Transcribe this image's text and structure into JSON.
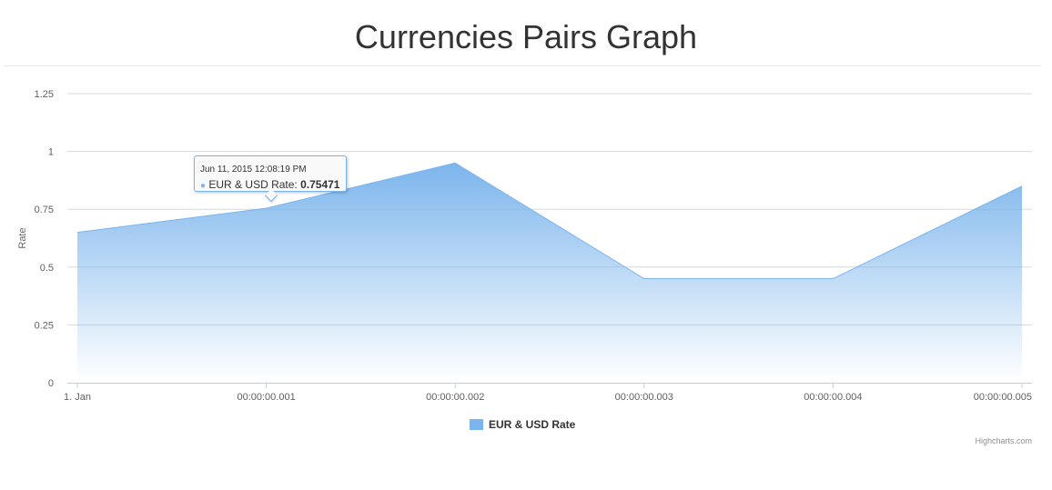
{
  "chart_data": {
    "type": "area",
    "title": "Currencies Pairs Graph",
    "ylabel": "Rate",
    "xlabel": "",
    "ylim": [
      0,
      1.25
    ],
    "y_ticks": [
      "0",
      "0.25",
      "0.5",
      "0.75",
      "1",
      "1.25"
    ],
    "y_tick_values": [
      0,
      0.25,
      0.5,
      0.75,
      1,
      1.25
    ],
    "x_ticks": [
      "1. Jan",
      "00:00:00.001",
      "00:00:00.002",
      "00:00:00.003",
      "00:00:00.004",
      "00:00:00.005"
    ],
    "grid": true,
    "legend": "bottom-center",
    "series": [
      {
        "name": "EUR & USD Rate",
        "x": [
          0,
          1,
          2,
          3,
          4,
          5
        ],
        "values": [
          0.65,
          0.75471,
          0.95,
          0.45,
          0.45,
          0.85
        ],
        "color": "#7cb5ec"
      }
    ],
    "tooltip": {
      "time": "Jun 11, 2015 12:08:19 PM",
      "series_label": "EUR & USD Rate: ",
      "value": "0.75471",
      "point_index": 1
    },
    "credits": "Highcharts.com"
  }
}
